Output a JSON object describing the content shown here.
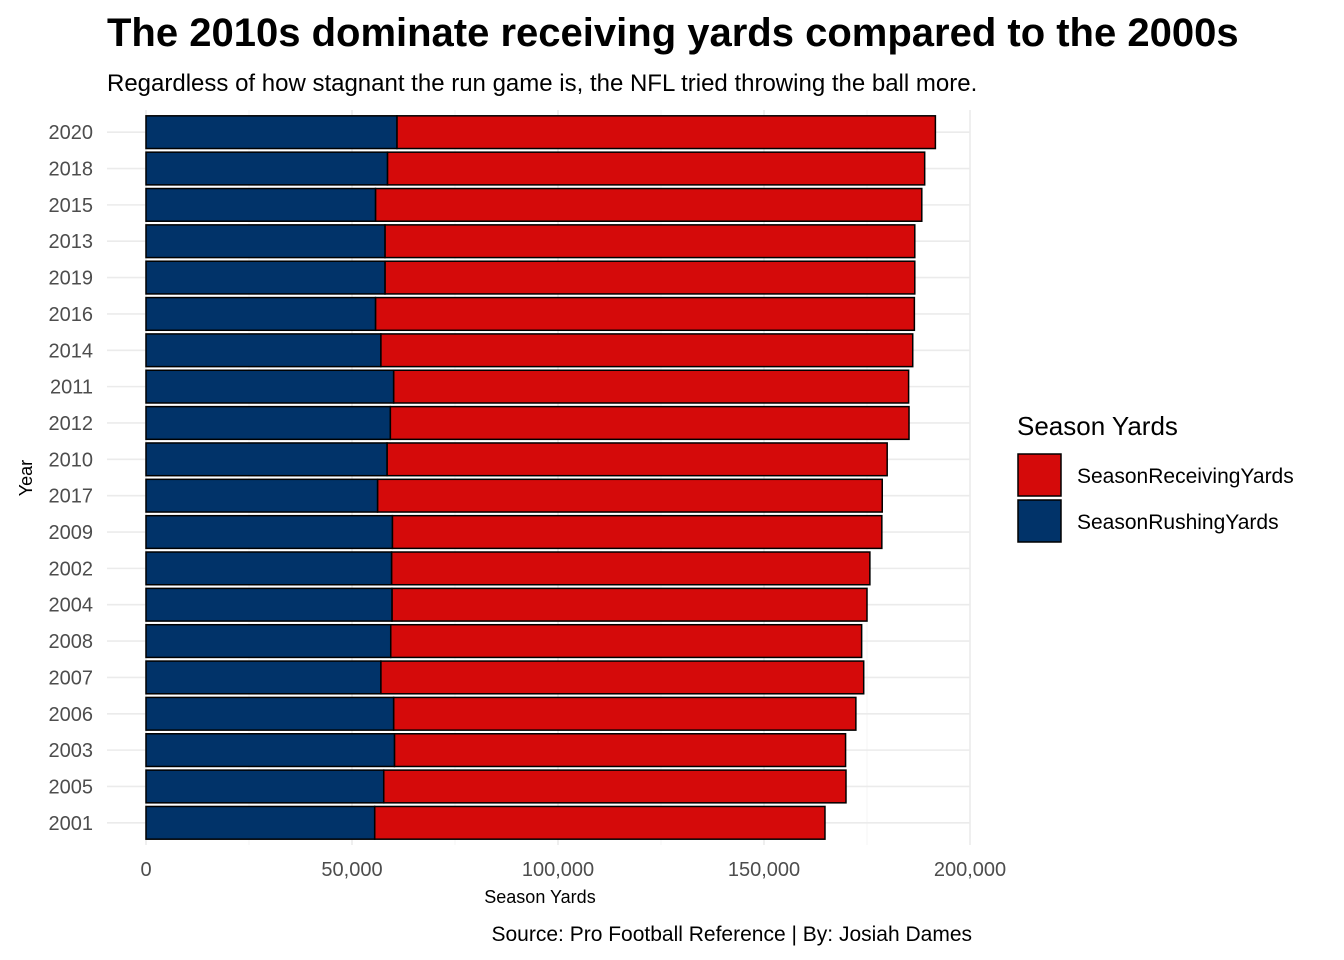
{
  "chart_data": {
    "type": "bar",
    "orientation": "horizontal",
    "stacked": true,
    "title": "The 2010s dominate receiving yards compared to the 2000s",
    "subtitle": "Regardless of how stagnant the run game is, the NFL tried throwing the ball more.",
    "xlabel": "Season Yards",
    "ylabel": "Year",
    "caption": "Source: Pro Football Reference | By: Josiah Dames",
    "xlim": [
      0,
      200000
    ],
    "x_ticks": [
      0,
      50000,
      100000,
      150000,
      200000
    ],
    "x_tick_labels": [
      "0",
      "50,000",
      "100,000",
      "150,000",
      "200,000"
    ],
    "grid": true,
    "legend": {
      "title": "Season Yards",
      "position": "right",
      "entries": [
        {
          "label": "SeasonReceivingYards",
          "color": "#d50a0a"
        },
        {
          "label": "SeasonRushingYards",
          "color": "#013369"
        }
      ]
    },
    "categories": [
      "2020",
      "2018",
      "2015",
      "2013",
      "2019",
      "2016",
      "2014",
      "2011",
      "2012",
      "2010",
      "2017",
      "2009",
      "2002",
      "2004",
      "2008",
      "2007",
      "2006",
      "2003",
      "2005",
      "2001"
    ],
    "series": [
      {
        "name": "SeasonRushingYards",
        "color": "#013369",
        "values": [
          60900,
          58600,
          55700,
          58000,
          58000,
          55700,
          57000,
          60100,
          59300,
          58500,
          56200,
          59800,
          59600,
          59700,
          59400,
          57000,
          60100,
          60300,
          57700,
          55500
        ]
      },
      {
        "name": "SeasonReceivingYards",
        "color": "#d50a0a",
        "values": [
          130700,
          130400,
          132600,
          128600,
          128600,
          130800,
          129100,
          125000,
          125900,
          121400,
          122500,
          118800,
          116100,
          115300,
          114300,
          117200,
          112200,
          109500,
          112200,
          109300
        ]
      }
    ]
  }
}
